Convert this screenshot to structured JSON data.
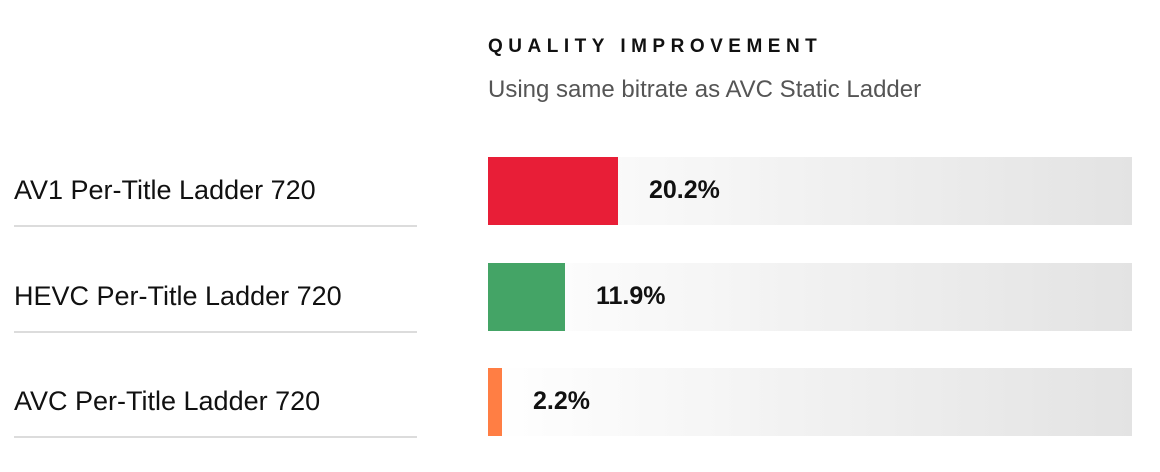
{
  "chart_data": {
    "type": "bar",
    "orientation": "horizontal",
    "title": "QUALITY IMPROVEMENT",
    "subtitle": "Using same bitrate as AVC Static Ladder",
    "categories": [
      "AV1 Per-Title Ladder 720",
      "HEVC Per-Title Ladder 720",
      "AVC Per-Title Ladder 720"
    ],
    "values": [
      20.2,
      11.9,
      2.2
    ],
    "value_labels": [
      "20.2%",
      "11.9%",
      "2.2%"
    ],
    "colors": [
      "#e81e37",
      "#44a466",
      "#ff7e44"
    ],
    "xlim": [
      0,
      100
    ],
    "grid": false,
    "legend": "none"
  }
}
